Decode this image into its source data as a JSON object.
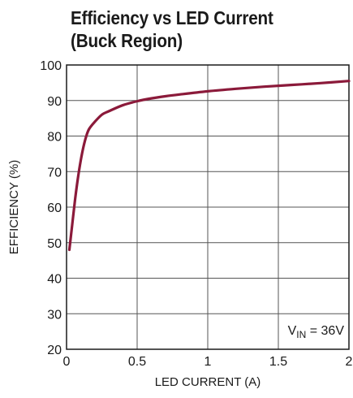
{
  "chart_data": {
    "type": "line",
    "title_lines": [
      "Efficiency vs LED Current",
      "(Buck Region)"
    ],
    "xlabel": "LED CURRENT (A)",
    "ylabel": "EFFICIENCY (%)",
    "xlim": [
      0,
      2
    ],
    "ylim": [
      20,
      100
    ],
    "x_ticks": [
      0,
      0.5,
      1,
      1.5,
      2
    ],
    "x_tick_labels": [
      "0",
      "0.5",
      "1",
      "1.5",
      "2"
    ],
    "y_ticks": [
      20,
      30,
      40,
      50,
      60,
      70,
      80,
      90,
      100
    ],
    "y_tick_labels": [
      "20",
      "30",
      "40",
      "50",
      "60",
      "70",
      "80",
      "90",
      "100"
    ],
    "grid": true,
    "annotation": {
      "main": "V",
      "subscript": "IN",
      "suffix": " = 36V",
      "placement": "bottom-right"
    },
    "series": [
      {
        "color": "#8b1a3a",
        "x": [
          0.02,
          0.04,
          0.06,
          0.08,
          0.1,
          0.12,
          0.14,
          0.16,
          0.2,
          0.25,
          0.3,
          0.4,
          0.5,
          0.6,
          0.7,
          0.8,
          1.0,
          1.2,
          1.4,
          1.6,
          1.8,
          2.0
        ],
        "y": [
          48,
          55,
          62,
          68,
          73,
          77,
          80,
          82,
          84,
          86,
          87,
          88.7,
          89.8,
          90.6,
          91.2,
          91.7,
          92.6,
          93.3,
          93.9,
          94.4,
          94.9,
          95.5
        ]
      }
    ]
  }
}
